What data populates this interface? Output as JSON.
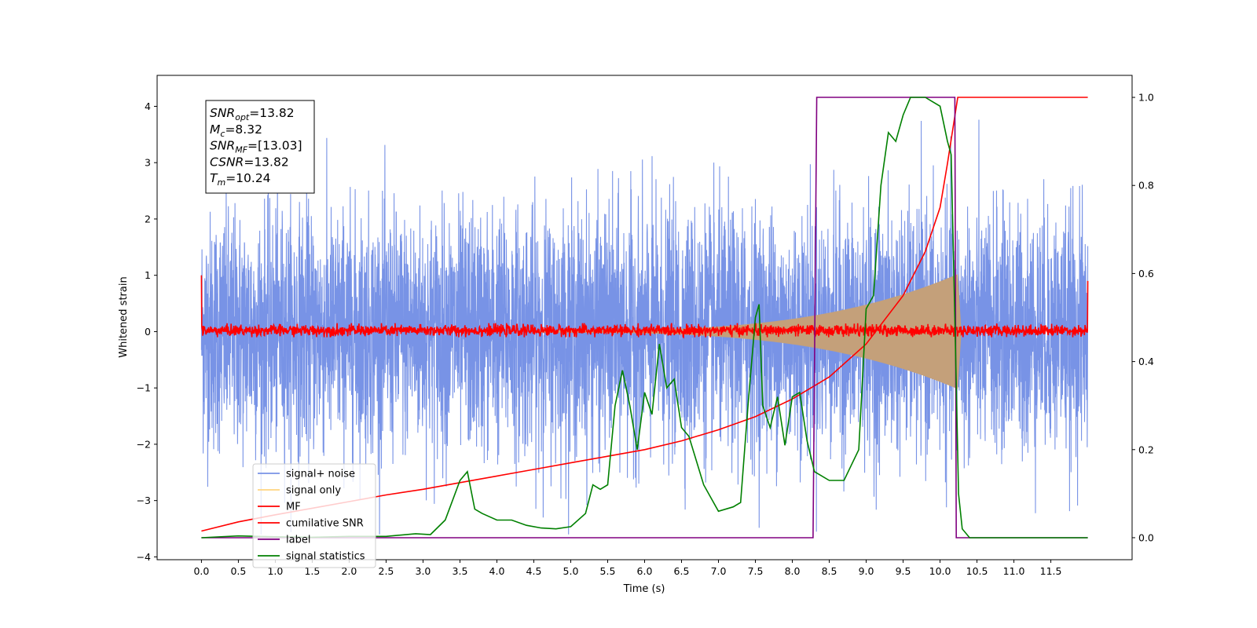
{
  "chart_data": {
    "type": "line",
    "title": "",
    "xlabel": "Time (s)",
    "ylabel": "Whitened strain",
    "xlim": [
      -0.6,
      12.6
    ],
    "ylim": [
      -4.05,
      4.55
    ],
    "y2lim": [
      -0.05,
      1.05
    ],
    "xticks": [
      "0.0",
      "0.5",
      "1.0",
      "1.5",
      "2.0",
      "2.5",
      "3.0",
      "3.5",
      "4.0",
      "4.5",
      "5.0",
      "5.5",
      "6.0",
      "6.5",
      "7.0",
      "7.5",
      "8.0",
      "8.5",
      "9.0",
      "9.5",
      "10.0",
      "10.5",
      "11.0",
      "11.5"
    ],
    "yticks": [
      "4",
      "3",
      "2",
      "1",
      "0",
      "−1",
      "−2",
      "−3",
      "−4"
    ],
    "y2ticks": [
      "1.0",
      "0.8",
      "0.6",
      "0.4",
      "0.2",
      "0.0"
    ],
    "grid": false,
    "legend_position": "lower-left",
    "annotation": {
      "lines": [
        {
          "sym": "SNR",
          "sub": "opt",
          "val": "=13.82"
        },
        {
          "sym": "M",
          "sub": "c",
          "val": "=8.32"
        },
        {
          "sym": "SNR",
          "sub": "MF",
          "val": "=[13.03]"
        },
        {
          "sym": "CSNR",
          "sub": "",
          "val": "=13.82"
        },
        {
          "sym": "T",
          "sub": "m",
          "val": "=10.24"
        }
      ]
    },
    "series": [
      {
        "name": "signal+ noise",
        "color": "#7893e6",
        "axis": "left",
        "kind": "noise",
        "x_range": [
          0,
          12
        ],
        "band": [
          -2.0,
          2.5
        ],
        "peaks": [
          -3.6,
          3.9
        ]
      },
      {
        "name": "signal only",
        "color": "#ffd580",
        "axis": "left",
        "kind": "chirp",
        "x_range": [
          4.5,
          10.24
        ],
        "amp_end": 1.0,
        "visible_fill": "#c4a07a"
      },
      {
        "name": "MF",
        "color": "#ff0000",
        "axis": "left",
        "kind": "mf",
        "x_range": [
          0,
          12
        ],
        "band": [
          -0.1,
          0.15
        ],
        "edges": [
          1.0,
          0.9
        ]
      },
      {
        "name": "cumilative SNR",
        "color": "#ff0000",
        "axis": "right",
        "x": [
          0,
          0.5,
          1.0,
          1.5,
          2.0,
          2.5,
          3.0,
          3.5,
          4.0,
          4.5,
          5.0,
          5.5,
          6.0,
          6.5,
          7.0,
          7.5,
          8.0,
          8.5,
          9.0,
          9.5,
          9.8,
          10.0,
          10.1,
          10.24,
          12.0
        ],
        "y": [
          0.015,
          0.036,
          0.052,
          0.067,
          0.082,
          0.097,
          0.11,
          0.125,
          0.14,
          0.155,
          0.17,
          0.185,
          0.2,
          0.22,
          0.245,
          0.275,
          0.315,
          0.365,
          0.44,
          0.55,
          0.65,
          0.75,
          0.85,
          1.0,
          1.0
        ]
      },
      {
        "name": "label",
        "color": "#800080",
        "axis": "right",
        "x": [
          0,
          8.28,
          8.33,
          10.2,
          10.22,
          12.0
        ],
        "y": [
          0,
          0,
          1.0,
          1.0,
          0,
          0
        ]
      },
      {
        "name": "signal statistics",
        "color": "#008000",
        "axis": "right",
        "x": [
          0,
          0.5,
          1.0,
          1.5,
          2.0,
          2.5,
          2.9,
          3.1,
          3.3,
          3.4,
          3.5,
          3.6,
          3.7,
          3.8,
          4.0,
          4.2,
          4.4,
          4.6,
          4.8,
          5.0,
          5.2,
          5.3,
          5.4,
          5.5,
          5.6,
          5.7,
          5.8,
          5.9,
          6.0,
          6.1,
          6.2,
          6.3,
          6.4,
          6.5,
          6.6,
          6.8,
          7.0,
          7.2,
          7.3,
          7.4,
          7.5,
          7.55,
          7.6,
          7.7,
          7.8,
          7.9,
          8.0,
          8.1,
          8.2,
          8.3,
          8.5,
          8.7,
          8.9,
          9.0,
          9.1,
          9.2,
          9.3,
          9.4,
          9.5,
          9.6,
          9.7,
          9.8,
          9.9,
          10.0,
          10.1,
          10.15,
          10.2,
          10.25,
          10.3,
          10.4,
          10.5,
          12.0
        ],
        "y": [
          0.0,
          0.004,
          0.002,
          0.001,
          0.003,
          0.003,
          0.009,
          0.007,
          0.04,
          0.085,
          0.13,
          0.15,
          0.065,
          0.055,
          0.04,
          0.04,
          0.028,
          0.022,
          0.02,
          0.025,
          0.055,
          0.12,
          0.11,
          0.12,
          0.3,
          0.38,
          0.3,
          0.2,
          0.33,
          0.28,
          0.44,
          0.34,
          0.36,
          0.25,
          0.23,
          0.12,
          0.06,
          0.07,
          0.08,
          0.3,
          0.5,
          0.53,
          0.3,
          0.25,
          0.32,
          0.21,
          0.32,
          0.33,
          0.22,
          0.15,
          0.13,
          0.13,
          0.2,
          0.52,
          0.55,
          0.8,
          0.92,
          0.9,
          0.96,
          1.0,
          1.0,
          1.0,
          0.99,
          0.98,
          0.9,
          0.87,
          0.5,
          0.1,
          0.02,
          0.0,
          0.0,
          0.0
        ]
      }
    ]
  }
}
